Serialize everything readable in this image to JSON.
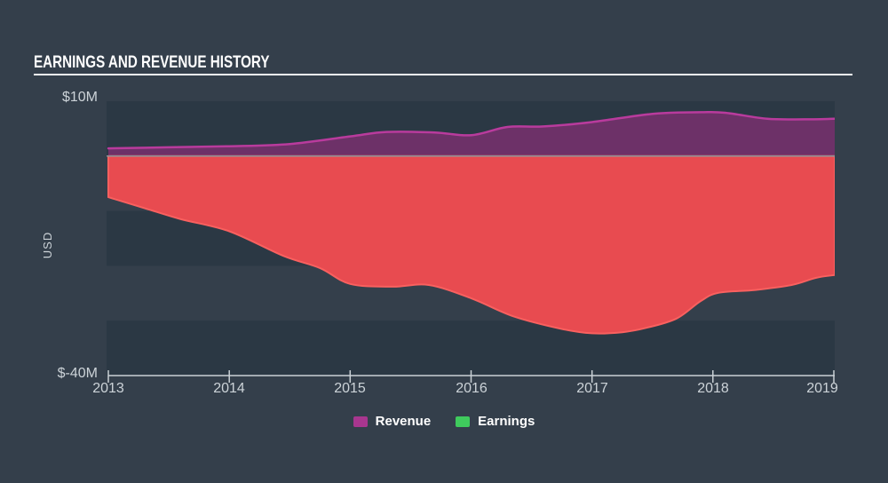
{
  "title": "EARNINGS AND REVENUE HISTORY",
  "y_axis": {
    "top_label": "$10M",
    "bottom_label": "$-40M",
    "axis_title": "USD"
  },
  "x_axis": {
    "ticks": [
      "2013",
      "2014",
      "2015",
      "2016",
      "2017",
      "2018",
      "2019"
    ]
  },
  "legend": {
    "items": [
      {
        "label": "Revenue",
        "color": "#a8368f"
      },
      {
        "label": "Earnings",
        "color": "#3fcb5d"
      }
    ]
  },
  "colors": {
    "background": "#343f4b",
    "plot_band_dark": "#2b3844",
    "zero_line": "#8a9197",
    "axis_line": "#c9d0d5",
    "axis_text": "#ccd3d8",
    "title_text": "#ffffff",
    "revenue_line": "#b93b9d",
    "revenue_fill": "#6d3168",
    "earnings_fill": "#e84b50",
    "earnings_edge": "#f9605f"
  },
  "chart_data": {
    "type": "area",
    "title": "EARNINGS AND REVENUE HISTORY",
    "ylabel": "USD",
    "unit": "USD millions",
    "ylim": [
      -40,
      10
    ],
    "xlim": [
      2013,
      2019
    ],
    "x_ticks": [
      2013,
      2014,
      2015,
      2016,
      2017,
      2018,
      2019
    ],
    "y_tick_labels": [
      "$10M",
      "$-40M"
    ],
    "grid": "horizontal-bands",
    "legend_position": "bottom",
    "series": [
      {
        "name": "Revenue",
        "line_color": "#b93b9d",
        "fill_color": "#6d3168",
        "x": [
          2013,
          2013.5,
          2014,
          2014.5,
          2015,
          2015.3,
          2015.7,
          2016,
          2016.3,
          2016.6,
          2017,
          2017.5,
          2017.9,
          2018.1,
          2018.45,
          2018.75,
          2019
        ],
        "values": [
          1.4,
          1.6,
          1.8,
          2.2,
          3.6,
          4.4,
          4.3,
          3.8,
          5.3,
          5.4,
          6.2,
          7.7,
          8.0,
          7.9,
          6.8,
          6.7,
          6.8
        ]
      },
      {
        "name": "Earnings",
        "line_color": "#f9605f",
        "fill_color": "#e84b50",
        "legend_color": "#3fcb5d",
        "x": [
          2013,
          2013.3,
          2013.6,
          2014,
          2014.45,
          2014.75,
          2015,
          2015.35,
          2015.65,
          2016,
          2016.35,
          2016.75,
          2017,
          2017.25,
          2017.45,
          2017.7,
          2017.9,
          2018.05,
          2018.35,
          2018.65,
          2018.85,
          2019
        ],
        "values": [
          -7.5,
          -9.5,
          -11.5,
          -13.7,
          -18.2,
          -20.4,
          -23.3,
          -23.8,
          -23.5,
          -25.9,
          -29.2,
          -31.5,
          -32.3,
          -32.1,
          -31.3,
          -29.6,
          -26.4,
          -24.9,
          -24.4,
          -23.5,
          -22.2,
          -21.7
        ]
      }
    ]
  }
}
